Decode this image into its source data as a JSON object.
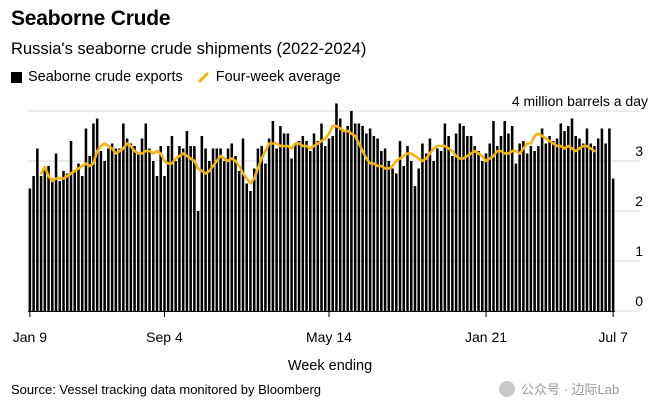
{
  "header": {
    "title": "Seaborne Crude",
    "subtitle": "Russia's seaborne crude shipments (2022-2024)"
  },
  "legend": {
    "bar_label": "Seaborne crude exports",
    "line_label": "Four-week average"
  },
  "footer": {
    "xlabel": "Week ending",
    "source": "Source: Vessel tracking data monitored by Bloomberg",
    "watermark": "公众号 · 边际Lab"
  },
  "chart_data": {
    "type": "bar",
    "unit_label": "4 million barrels a day",
    "y_ticks": [
      "0",
      "1",
      "2",
      "3"
    ],
    "x_ticks": [
      "Jan 9",
      "Sep 4",
      "May 14",
      "Jan 21",
      "Jul 7"
    ],
    "xlabel": "Week ending",
    "ylim": [
      0,
      4
    ],
    "grid": true,
    "colors": {
      "bars": "#000000",
      "line": "#f3b514",
      "grid": "#d9d9d9"
    },
    "series": [
      {
        "name": "Seaborne crude exports",
        "kind": "bar",
        "values": [
          2.45,
          2.7,
          3.25,
          2.7,
          2.85,
          2.9,
          2.65,
          3.15,
          2.6,
          2.8,
          2.75,
          3.4,
          2.8,
          2.95,
          2.7,
          3.65,
          3.1,
          3.75,
          3.85,
          3.2,
          3.0,
          3.25,
          3.35,
          3.25,
          3.25,
          3.75,
          3.45,
          3.35,
          3.3,
          3.15,
          3.45,
          3.75,
          3.25,
          3.0,
          2.7,
          3.3,
          2.7,
          3.3,
          3.5,
          3.0,
          3.3,
          3.25,
          3.6,
          3.3,
          3.3,
          2.0,
          3.5,
          3.25,
          3.0,
          3.25,
          3.25,
          3.25,
          3.0,
          3.25,
          3.35,
          3.1,
          2.8,
          3.45,
          2.55,
          2.4,
          2.85,
          3.25,
          3.3,
          2.95,
          3.45,
          3.8,
          3.25,
          3.7,
          3.55,
          3.55,
          3.05,
          3.35,
          3.4,
          3.5,
          3.4,
          3.2,
          3.55,
          3.4,
          3.75,
          3.3,
          3.45,
          3.5,
          4.15,
          3.85,
          3.6,
          3.7,
          4.0,
          3.75,
          3.75,
          3.7,
          3.55,
          3.65,
          3.5,
          3.45,
          3.2,
          3.25,
          3.0,
          2.85,
          2.75,
          3.4,
          2.9,
          3.3,
          3.0,
          2.5,
          2.85,
          3.35,
          3.15,
          3.45,
          3.0,
          3.25,
          3.2,
          3.75,
          3.5,
          3.1,
          3.55,
          3.75,
          3.7,
          3.5,
          3.5,
          3.3,
          3.2,
          3.0,
          3.15,
          3.35,
          3.8,
          3.3,
          3.5,
          3.8,
          3.55,
          3.7,
          2.95,
          3.35,
          3.4,
          3.15,
          3.3,
          3.2,
          3.3,
          3.65,
          3.35,
          3.5,
          3.4,
          3.45,
          3.75,
          3.6,
          3.7,
          3.85,
          3.5,
          3.45,
          3.35,
          3.65,
          3.35,
          3.3,
          3.45,
          3.65,
          3.35,
          3.65,
          2.65
        ]
      },
      {
        "name": "Four-week average",
        "kind": "line",
        "values": [
          null,
          null,
          null,
          2.75,
          2.88,
          2.7,
          2.6,
          2.65,
          2.65,
          2.65,
          2.7,
          2.75,
          2.8,
          2.85,
          2.9,
          2.95,
          2.9,
          2.95,
          3.2,
          3.3,
          3.35,
          3.3,
          3.25,
          3.15,
          3.2,
          3.25,
          3.35,
          3.3,
          3.2,
          3.15,
          3.15,
          3.2,
          3.2,
          3.15,
          3.2,
          3.15,
          3.0,
          2.95,
          2.95,
          3.05,
          3.1,
          3.15,
          3.1,
          3.05,
          3.0,
          2.85,
          2.8,
          2.75,
          2.8,
          2.9,
          3.0,
          3.1,
          3.05,
          3.0,
          3.05,
          3.0,
          2.9,
          2.75,
          2.65,
          2.55,
          2.65,
          2.85,
          3.05,
          3.2,
          3.35,
          3.35,
          3.35,
          3.3,
          3.3,
          3.3,
          3.25,
          3.35,
          3.35,
          3.3,
          3.3,
          3.25,
          3.3,
          3.35,
          3.4,
          3.45,
          3.55,
          3.7,
          3.7,
          3.65,
          3.6,
          3.6,
          3.55,
          3.5,
          3.35,
          3.2,
          3.05,
          2.95,
          2.95,
          2.9,
          2.9,
          2.85,
          2.85,
          2.9,
          3.0,
          3.05,
          3.1,
          3.15,
          3.15,
          3.1,
          3.05,
          3.0,
          3.05,
          3.15,
          3.25,
          3.3,
          3.3,
          3.3,
          3.25,
          3.2,
          3.1,
          3.05,
          3.05,
          3.1,
          3.15,
          3.2,
          3.15,
          3.1,
          3.0,
          3.05,
          3.1,
          3.2,
          3.2,
          3.15,
          3.15,
          3.2,
          3.2,
          3.15,
          3.25,
          3.35,
          3.35,
          3.5,
          3.55,
          3.5,
          3.45,
          3.4,
          3.35,
          3.3,
          3.3,
          3.25,
          3.3,
          3.25,
          3.2,
          3.25,
          3.3,
          3.3,
          3.25,
          3.2
        ]
      }
    ]
  }
}
